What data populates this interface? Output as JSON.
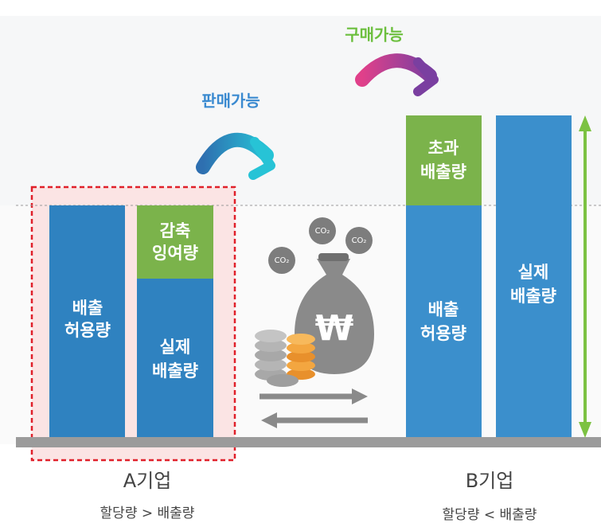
{
  "arrows": {
    "buy": "구매가능",
    "sell": "판매가능"
  },
  "company_a": {
    "name": "A기업",
    "condition": "할당량 > 배출량",
    "allowance": [
      "배출",
      "허용량"
    ],
    "surplus": [
      "감축",
      "잉여량"
    ],
    "actual": [
      "실제",
      "배출량"
    ]
  },
  "company_b": {
    "name": "B기업",
    "condition": "할당량 < 배출량",
    "excess": [
      "초과",
      "배출량"
    ],
    "allowance": [
      "배출",
      "허용량"
    ],
    "actual": [
      "실제",
      "배출량"
    ]
  },
  "market": {
    "co2": [
      "CO₂",
      "CO₂",
      "CO₂"
    ],
    "currency": "₩"
  }
}
